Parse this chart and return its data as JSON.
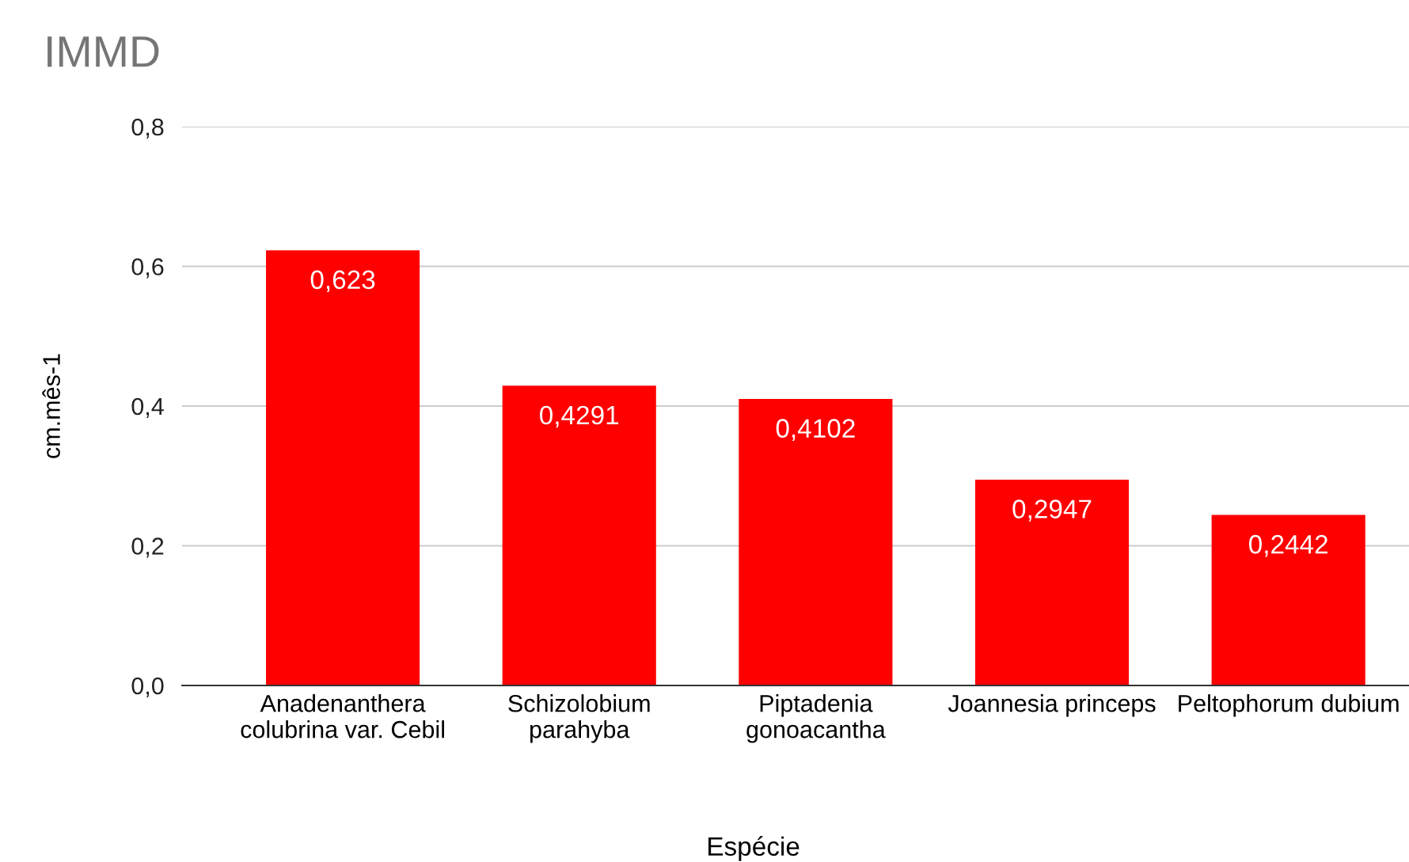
{
  "chart_data": {
    "type": "bar",
    "title": "IMMD",
    "xlabel": "Espécie",
    "ylabel": "cm.mês-1",
    "categories": [
      "Anadenanthera colubrina var. Cebil",
      "Schizolobium parahyba",
      "Piptadenia gonoacantha",
      "Joannesia princeps",
      "Peltophorum dubium"
    ],
    "values": [
      0.623,
      0.4291,
      0.4102,
      0.2947,
      0.2442
    ],
    "value_labels": [
      "0,623",
      "0,4291",
      "0,4102",
      "0,2947",
      "0,2442"
    ],
    "color": "#ff0000",
    "ylim": [
      0,
      0.8
    ],
    "yticks": [
      {
        "value": 0,
        "label": "0,0"
      },
      {
        "value": 0.2,
        "label": "0,2"
      },
      {
        "value": 0.4,
        "label": "0,4"
      },
      {
        "value": 0.6,
        "label": "0,6"
      },
      {
        "value": 0.8,
        "label": "0,8"
      }
    ],
    "grid": "y",
    "legend": false
  }
}
